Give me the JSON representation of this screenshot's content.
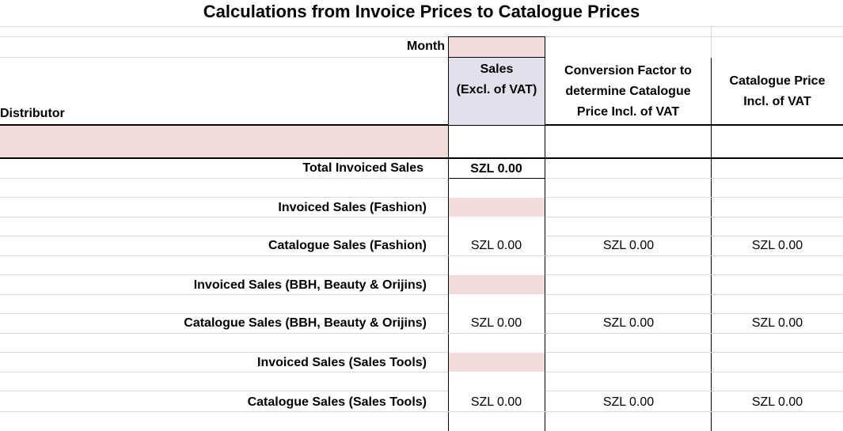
{
  "title": "Calculations from Invoice Prices to Catalogue Prices",
  "month_label": "Month",
  "distributor_label": "Distributor",
  "headers": {
    "sales_line1": "Sales",
    "sales_line2": "(Excl. of VAT)",
    "conversion_line1": "Conversion Factor to",
    "conversion_line2": "determine Catalogue",
    "conversion_line3": "Price Incl. of VAT",
    "catalogue_line1": "Catalogue Price",
    "catalogue_line2": "Incl. of VAT"
  },
  "rows": {
    "total_invoiced": {
      "label": "Total Invoiced Sales",
      "sales": "SZL 0.00"
    },
    "invoiced_fashion": {
      "label": "Invoiced Sales (Fashion)"
    },
    "catalogue_fashion": {
      "label": "Catalogue Sales (Fashion)",
      "sales": "SZL 0.00",
      "conversion": "SZL 0.00",
      "catalogue": "SZL 0.00"
    },
    "invoiced_bbh": {
      "label": "Invoiced Sales (BBH, Beauty & Orijins)"
    },
    "catalogue_bbh": {
      "label": "Catalogue Sales (BBH, Beauty & Orijins)",
      "sales": "SZL 0.00",
      "conversion": "SZL 0.00",
      "catalogue": "SZL 0.00"
    },
    "invoiced_tools": {
      "label": "Invoiced Sales (Sales Tools)"
    },
    "catalogue_tools": {
      "label": "Catalogue Sales (Sales Tools)",
      "sales": "SZL 0.00",
      "conversion": "SZL 0.00",
      "catalogue": "SZL 0.00"
    }
  },
  "colors": {
    "input_fill": "#f2dcdb",
    "header_fill": "#e4dfec"
  }
}
